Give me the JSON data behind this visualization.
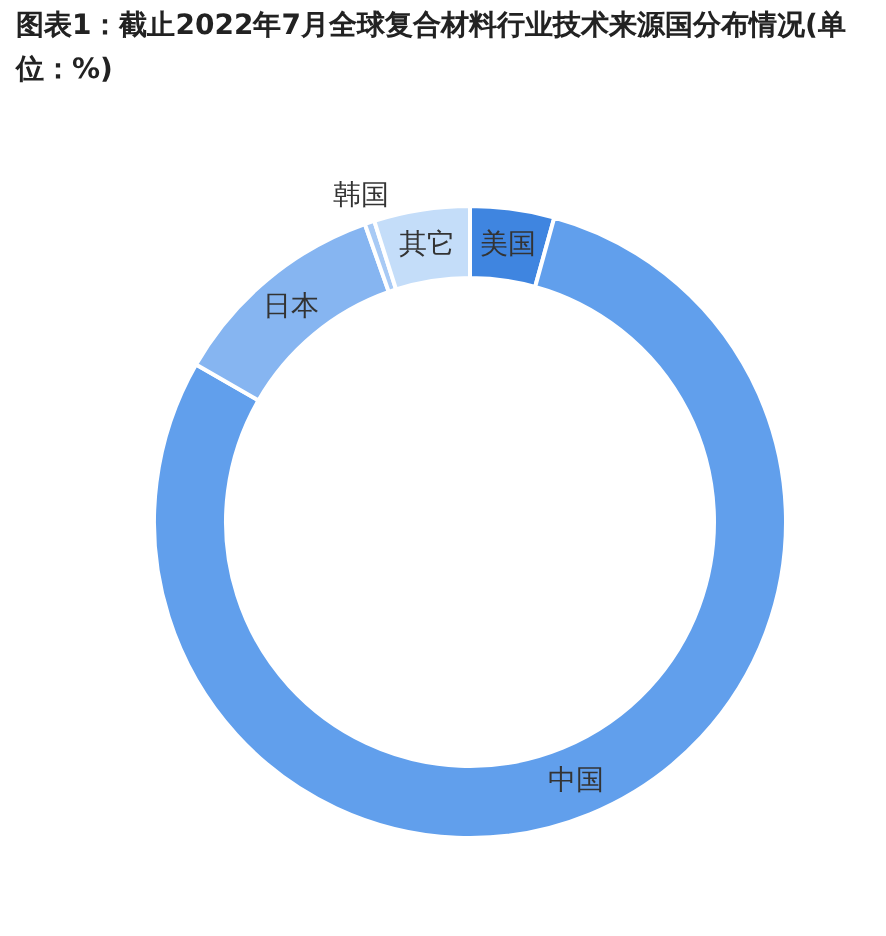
{
  "chart_data": {
    "type": "donut",
    "title": "图表1：截止2022年7月全球复合材料行业技术来源国分布情况(单位：%)",
    "categories": [
      "美国",
      "中国",
      "日本",
      "韩国",
      "其它"
    ],
    "values": [
      4.3,
      79.0,
      11.3,
      0.5,
      4.9
    ],
    "colors": [
      "#3f85e0",
      "#619fec",
      "#86b5f1",
      "#a8caf5",
      "#c4ddf9"
    ]
  }
}
